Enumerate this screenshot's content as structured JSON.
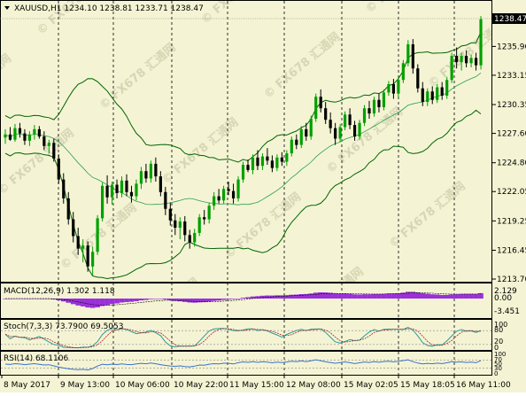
{
  "header": {
    "symbol_line": "XAUUSD,H1  1234.10 1238.81 1233.71 1238.47",
    "current_price": "1238.47"
  },
  "watermark_text": "© FX678 汇通网",
  "colors": {
    "background": "#F4F4D4",
    "bull_candle": "#00A000",
    "bear_candle": "#000000",
    "bands_outer": "#006400",
    "bands_middle": "#2E9E4E",
    "macd_hist": "#9B30D9",
    "macd_signal": "#C000C0",
    "stoch_main": "#2A9A9A",
    "stoch_signal": "#B02020",
    "rsi_line": "#3A70D0",
    "grid": "#000000",
    "price_tag_bg": "#000000"
  },
  "panels": {
    "macd": {
      "label": "MACD(12,26,9) 1.302 1.118",
      "ticks": [
        "2.129",
        "0.00",
        "-3.451"
      ]
    },
    "stoch": {
      "label": "Stoch(7,3,3) 73.7900 69.5053",
      "ticks": [
        "100",
        "80",
        "20",
        "0"
      ]
    },
    "rsi": {
      "label": "RSI(14) 68.1106",
      "ticks": [
        "100",
        "70",
        "50",
        "30",
        "0"
      ]
    }
  },
  "chart_data": {
    "type": "candlestick",
    "symbol": "XAUUSD",
    "timeframe": "H1",
    "y_ticks": [
      "1238.47",
      "1235.90",
      "1233.15",
      "1230.35",
      "1227.60",
      "1224.80",
      "1222.05",
      "1219.25",
      "1216.45",
      "1213.70"
    ],
    "x_ticks": [
      "8 May 2017",
      "9 May 13:00",
      "10 May 06:00",
      "10 May 22:00",
      "11 May 15:00",
      "12 May 08:00",
      "15 May 02:05",
      "15 May 18:05",
      "16 May 11:00"
    ],
    "ylim": [
      1213.0,
      1240.0
    ],
    "candles": [
      [
        1227.2,
        1228.0,
        1226.6,
        1227.5
      ],
      [
        1227.5,
        1228.2,
        1226.9,
        1227.0
      ],
      [
        1227.0,
        1228.5,
        1226.8,
        1228.1
      ],
      [
        1228.1,
        1228.6,
        1227.2,
        1227.6
      ],
      [
        1227.6,
        1228.0,
        1226.5,
        1226.9
      ],
      [
        1226.9,
        1227.8,
        1226.4,
        1227.5
      ],
      [
        1227.5,
        1228.4,
        1227.0,
        1228.0
      ],
      [
        1228.0,
        1228.3,
        1227.1,
        1227.3
      ],
      [
        1227.3,
        1227.8,
        1226.0,
        1226.4
      ],
      [
        1226.4,
        1227.0,
        1225.7,
        1226.7
      ],
      [
        1226.7,
        1227.1,
        1224.9,
        1225.2
      ],
      [
        1225.2,
        1225.6,
        1222.8,
        1223.2
      ],
      [
        1223.2,
        1223.8,
        1220.9,
        1221.4
      ],
      [
        1221.4,
        1222.0,
        1218.9,
        1219.4
      ],
      [
        1219.4,
        1220.1,
        1217.2,
        1217.8
      ],
      [
        1217.8,
        1218.6,
        1216.0,
        1216.6
      ],
      [
        1216.6,
        1217.5,
        1215.3,
        1216.9
      ],
      [
        1216.9,
        1217.3,
        1214.4,
        1214.9
      ],
      [
        1214.9,
        1216.8,
        1214.0,
        1216.3
      ],
      [
        1216.3,
        1219.8,
        1216.0,
        1219.5
      ],
      [
        1219.5,
        1222.9,
        1219.2,
        1222.6
      ],
      [
        1222.6,
        1223.6,
        1220.9,
        1221.5
      ],
      [
        1221.5,
        1223.0,
        1220.8,
        1222.7
      ],
      [
        1222.7,
        1223.2,
        1221.4,
        1221.9
      ],
      [
        1221.9,
        1223.5,
        1221.5,
        1223.1
      ],
      [
        1223.1,
        1223.7,
        1221.6,
        1222.0
      ],
      [
        1222.0,
        1222.6,
        1221.0,
        1221.6
      ],
      [
        1221.6,
        1223.2,
        1221.2,
        1222.8
      ],
      [
        1222.8,
        1224.4,
        1222.3,
        1224.0
      ],
      [
        1224.0,
        1224.7,
        1222.9,
        1223.3
      ],
      [
        1223.3,
        1225.0,
        1222.9,
        1224.7
      ],
      [
        1224.7,
        1225.3,
        1223.0,
        1223.5
      ],
      [
        1223.5,
        1224.0,
        1221.6,
        1222.0
      ],
      [
        1222.0,
        1222.5,
        1219.8,
        1220.4
      ],
      [
        1220.4,
        1221.0,
        1218.8,
        1219.3
      ],
      [
        1219.3,
        1219.9,
        1217.9,
        1218.6
      ],
      [
        1218.6,
        1219.6,
        1217.5,
        1219.2
      ],
      [
        1219.2,
        1219.7,
        1217.3,
        1217.9
      ],
      [
        1217.9,
        1218.4,
        1216.6,
        1217.2
      ],
      [
        1217.2,
        1218.5,
        1216.8,
        1218.1
      ],
      [
        1218.1,
        1219.9,
        1217.8,
        1219.6
      ],
      [
        1219.6,
        1220.3,
        1218.9,
        1219.4
      ],
      [
        1219.4,
        1221.0,
        1219.0,
        1220.7
      ],
      [
        1220.7,
        1222.0,
        1220.3,
        1221.6
      ],
      [
        1221.6,
        1222.3,
        1220.9,
        1221.2
      ],
      [
        1221.2,
        1222.6,
        1220.9,
        1222.3
      ],
      [
        1222.3,
        1223.0,
        1221.7,
        1222.1
      ],
      [
        1222.1,
        1222.8,
        1220.9,
        1221.4
      ],
      [
        1221.4,
        1223.5,
        1221.1,
        1223.2
      ],
      [
        1223.2,
        1224.9,
        1222.9,
        1224.6
      ],
      [
        1224.6,
        1225.1,
        1223.9,
        1224.1
      ],
      [
        1224.1,
        1225.6,
        1223.7,
        1225.3
      ],
      [
        1225.3,
        1226.0,
        1224.1,
        1224.5
      ],
      [
        1224.5,
        1225.7,
        1224.1,
        1225.4
      ],
      [
        1225.4,
        1226.2,
        1224.6,
        1225.0
      ],
      [
        1225.0,
        1225.5,
        1223.9,
        1224.3
      ],
      [
        1224.3,
        1225.6,
        1224.0,
        1225.3
      ],
      [
        1225.3,
        1225.8,
        1224.5,
        1224.9
      ],
      [
        1224.9,
        1226.0,
        1224.5,
        1225.7
      ],
      [
        1225.7,
        1227.3,
        1225.4,
        1227.0
      ],
      [
        1227.0,
        1227.5,
        1226.1,
        1226.5
      ],
      [
        1226.5,
        1228.3,
        1226.2,
        1228.0
      ],
      [
        1228.0,
        1228.6,
        1226.9,
        1227.3
      ],
      [
        1227.3,
        1229.3,
        1227.0,
        1229.0
      ],
      [
        1229.0,
        1231.4,
        1228.7,
        1231.1
      ],
      [
        1231.1,
        1231.8,
        1229.6,
        1230.0
      ],
      [
        1230.0,
        1230.6,
        1228.5,
        1228.9
      ],
      [
        1228.9,
        1229.6,
        1227.6,
        1228.1
      ],
      [
        1228.1,
        1228.6,
        1226.5,
        1227.1
      ],
      [
        1227.1,
        1228.5,
        1226.8,
        1228.2
      ],
      [
        1228.2,
        1229.7,
        1227.9,
        1229.4
      ],
      [
        1229.4,
        1230.0,
        1228.0,
        1228.4
      ],
      [
        1228.4,
        1228.8,
        1226.9,
        1227.3
      ],
      [
        1227.3,
        1228.9,
        1227.0,
        1228.6
      ],
      [
        1228.6,
        1230.3,
        1228.3,
        1230.0
      ],
      [
        1230.0,
        1230.7,
        1229.0,
        1229.5
      ],
      [
        1229.5,
        1231.1,
        1229.2,
        1230.8
      ],
      [
        1230.8,
        1231.4,
        1229.6,
        1230.1
      ],
      [
        1230.1,
        1231.8,
        1229.8,
        1231.5
      ],
      [
        1231.5,
        1232.6,
        1231.2,
        1232.3
      ],
      [
        1232.3,
        1232.8,
        1230.9,
        1231.4
      ],
      [
        1231.4,
        1233.0,
        1231.1,
        1232.7
      ],
      [
        1232.7,
        1234.6,
        1232.4,
        1234.3
      ],
      [
        1234.3,
        1236.5,
        1234.0,
        1236.1
      ],
      [
        1236.1,
        1236.6,
        1233.3,
        1233.8
      ],
      [
        1233.8,
        1234.2,
        1231.5,
        1231.9
      ],
      [
        1231.9,
        1232.5,
        1230.2,
        1230.6
      ],
      [
        1230.6,
        1231.9,
        1230.2,
        1231.6
      ],
      [
        1231.6,
        1232.1,
        1230.4,
        1230.8
      ],
      [
        1230.8,
        1232.3,
        1230.5,
        1232.0
      ],
      [
        1232.0,
        1232.5,
        1230.8,
        1231.2
      ],
      [
        1231.2,
        1233.0,
        1230.9,
        1232.7
      ],
      [
        1232.7,
        1235.3,
        1232.4,
        1235.0
      ],
      [
        1235.0,
        1235.8,
        1233.8,
        1234.4
      ],
      [
        1234.4,
        1235.3,
        1233.6,
        1235.0
      ],
      [
        1235.0,
        1235.5,
        1233.9,
        1234.3
      ],
      [
        1234.3,
        1235.1,
        1233.9,
        1234.8
      ],
      [
        1234.8,
        1235.3,
        1233.6,
        1234.1
      ],
      [
        1234.1,
        1238.8,
        1233.7,
        1238.5
      ]
    ],
    "last_price": 1238.47
  }
}
